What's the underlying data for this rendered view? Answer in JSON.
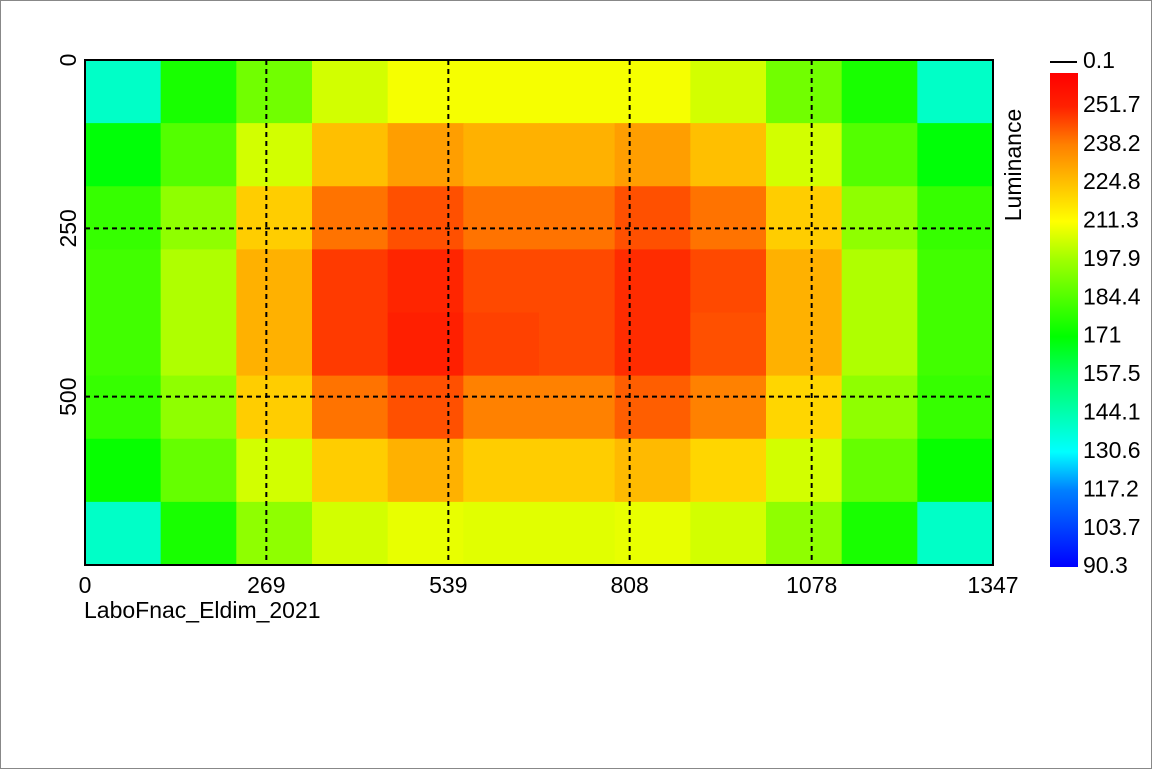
{
  "chart_data": {
    "type": "heatmap",
    "caption": "LaboFnac_Eldim_2021",
    "colorbar_label": "Luminance",
    "colorbar_top_label": 0.1,
    "xlim": [
      0,
      1347
    ],
    "xticks": [
      0,
      269,
      539,
      808,
      1078,
      1347
    ],
    "ylim": [
      0,
      750
    ],
    "yticks": [
      0,
      250,
      500
    ],
    "y_inverted": true,
    "grid": true,
    "clim": [
      90.3,
      263.3
    ],
    "cticks": [
      251.7,
      238.2,
      224.8,
      211.3,
      197.9,
      184.4,
      171.0,
      157.5,
      144.1,
      130.6,
      117.2,
      103.7,
      90.3
    ],
    "colormap": [
      {
        "value": 90.3,
        "color": "#0000ff"
      },
      {
        "value": 117.2,
        "color": "#0080ff"
      },
      {
        "value": 130.6,
        "color": "#00ffff"
      },
      {
        "value": 157.5,
        "color": "#00ff60"
      },
      {
        "value": 171.0,
        "color": "#00ff00"
      },
      {
        "value": 197.9,
        "color": "#a0ff00"
      },
      {
        "value": 211.3,
        "color": "#ffff00"
      },
      {
        "value": 224.8,
        "color": "#ffc000"
      },
      {
        "value": 238.2,
        "color": "#ff8000"
      },
      {
        "value": 251.7,
        "color": "#ff2000"
      },
      {
        "value": 263.3,
        "color": "#ff0000"
      }
    ],
    "values": [
      [
        140,
        175,
        190,
        205,
        210,
        210,
        210,
        210,
        205,
        190,
        175,
        140
      ],
      [
        170,
        185,
        205,
        225,
        232,
        228,
        228,
        232,
        225,
        205,
        185,
        170
      ],
      [
        180,
        195,
        222,
        240,
        245,
        240,
        240,
        245,
        240,
        222,
        195,
        180
      ],
      [
        182,
        200,
        228,
        248,
        251,
        246,
        246,
        250,
        246,
        228,
        200,
        182
      ],
      [
        182,
        200,
        228,
        248,
        252,
        247,
        246,
        250,
        245,
        228,
        200,
        182
      ],
      [
        180,
        195,
        222,
        240,
        245,
        238,
        238,
        243,
        238,
        220,
        195,
        180
      ],
      [
        172,
        188,
        205,
        222,
        228,
        222,
        222,
        226,
        220,
        205,
        188,
        172
      ],
      [
        140,
        175,
        195,
        205,
        208,
        207,
        207,
        208,
        205,
        195,
        175,
        140
      ]
    ]
  }
}
